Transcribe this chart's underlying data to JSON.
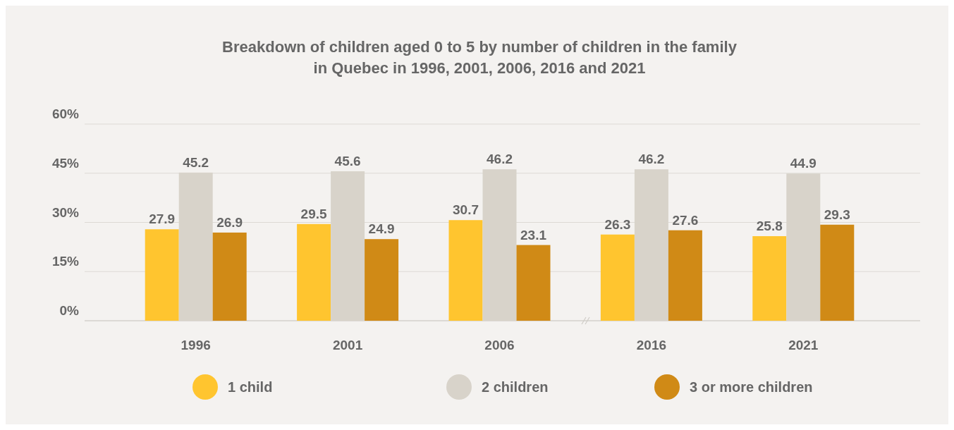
{
  "chart_data": {
    "type": "bar",
    "title": "Breakdown of children aged 0 to 5 by number of children in the family\nin Quebec in 1996, 2001, 2006, 2016 and 2021",
    "categories": [
      "1996",
      "2001",
      "2006",
      "2016",
      "2021"
    ],
    "series": [
      {
        "name": "1 child",
        "color": "#ffc52f",
        "values": [
          27.9,
          29.5,
          30.7,
          26.3,
          25.8
        ]
      },
      {
        "name": "2 children",
        "color": "#d8d3ca",
        "values": [
          45.2,
          45.6,
          46.2,
          46.2,
          44.9
        ]
      },
      {
        "name": "3 or more children",
        "color": "#d08a16",
        "values": [
          26.9,
          24.9,
          23.1,
          27.6,
          29.3
        ]
      }
    ],
    "ylim": [
      0,
      60
    ],
    "yticks": [
      {
        "value": 0,
        "label": "0%"
      },
      {
        "value": 15,
        "label": "15%"
      },
      {
        "value": 30,
        "label": "30%"
      },
      {
        "value": 45,
        "label": "45%"
      },
      {
        "value": 60,
        "label": "60%"
      }
    ],
    "grid": "y",
    "data_labels": true,
    "legend": "bottom"
  }
}
